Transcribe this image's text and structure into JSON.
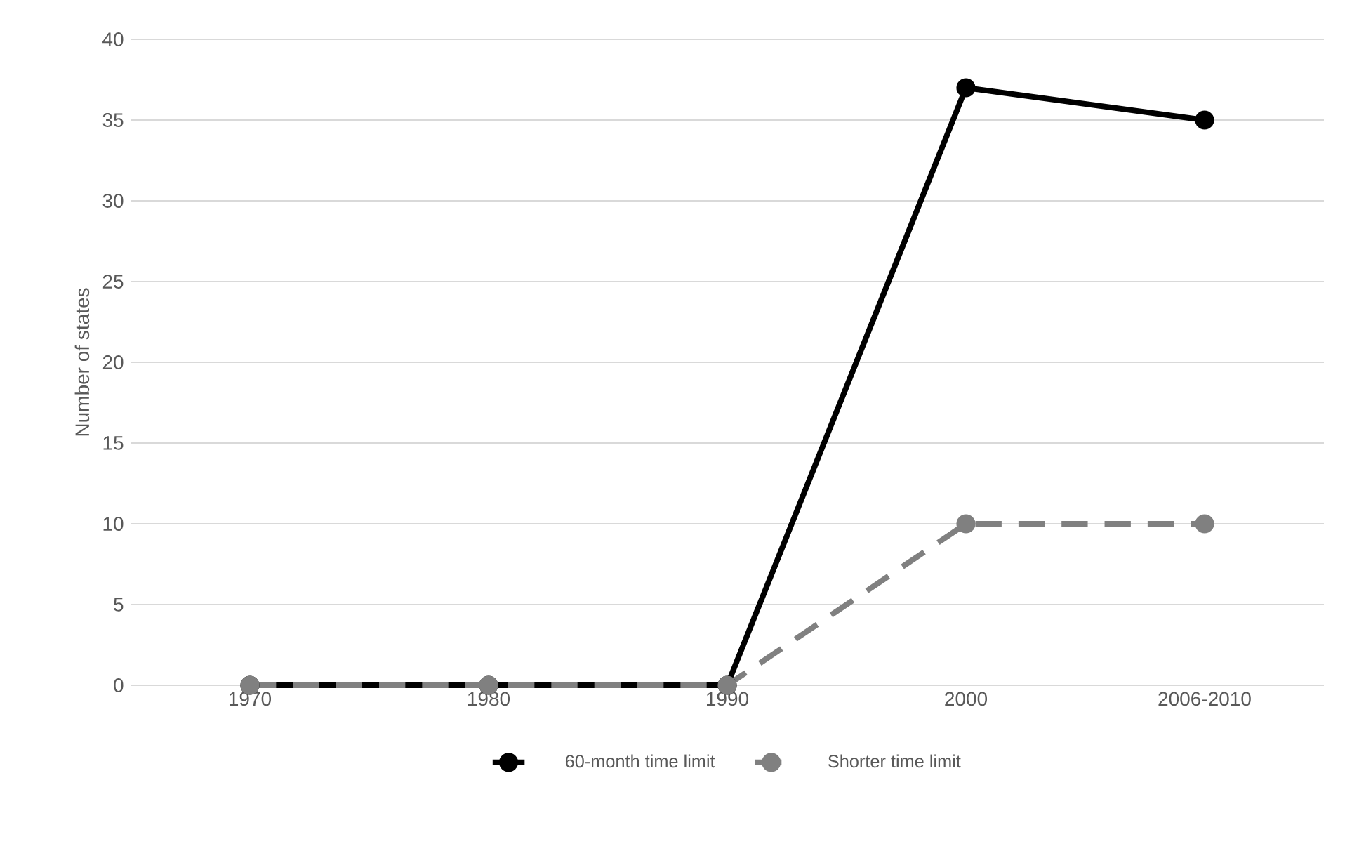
{
  "chart_data": {
    "type": "line",
    "ylabel": "Number of states",
    "categories": [
      "1970",
      "1980",
      "1990",
      "2000",
      "2006-2010"
    ],
    "series": [
      {
        "name": "60-month time limit",
        "color": "#000000",
        "line_style": "solid",
        "values": [
          0,
          0,
          0,
          37,
          35
        ]
      },
      {
        "name": "Shorter time limit",
        "color": "#808080",
        "line_style": "dashed",
        "values": [
          0,
          0,
          0,
          10,
          10
        ]
      }
    ],
    "ylim": [
      0,
      40
    ],
    "yticks": [
      0,
      5,
      10,
      15,
      20,
      25,
      30,
      35,
      40
    ],
    "grid": "y",
    "legend": "bottom",
    "marker": "circle"
  }
}
